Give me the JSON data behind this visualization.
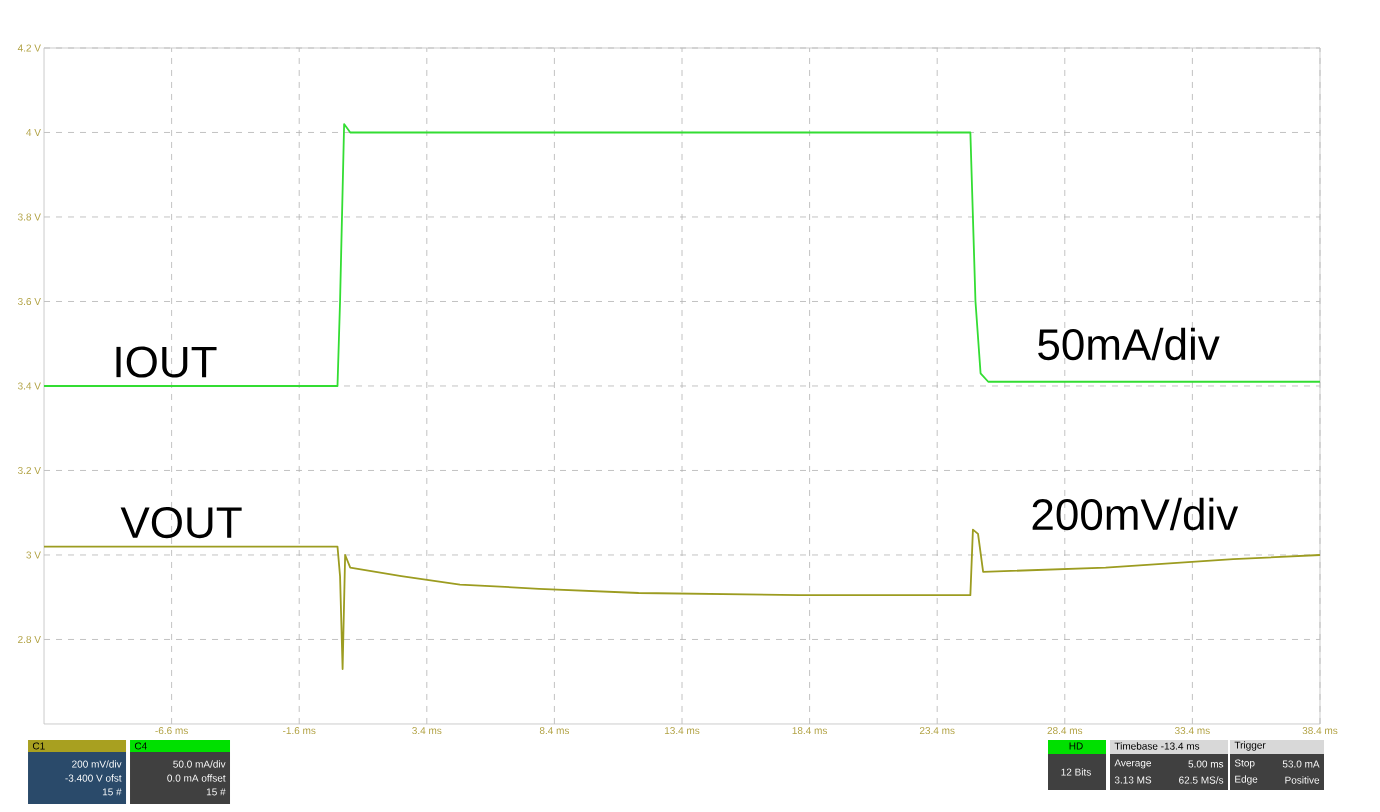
{
  "chart_data": {
    "type": "line",
    "xlim": [
      -11.6,
      38.4
    ],
    "ylim": [
      2.6,
      4.2
    ],
    "xticks": [
      {
        "value": -6.6,
        "label": "-6.6 ms"
      },
      {
        "value": -1.6,
        "label": "-1.6 ms"
      },
      {
        "value": 3.4,
        "label": "3.4 ms"
      },
      {
        "value": 8.4,
        "label": "8.4 ms"
      },
      {
        "value": 13.4,
        "label": "13.4 ms"
      },
      {
        "value": 18.4,
        "label": "18.4 ms"
      },
      {
        "value": 23.4,
        "label": "23.4 ms"
      },
      {
        "value": 28.4,
        "label": "28.4 ms"
      },
      {
        "value": 33.4,
        "label": "33.4 ms"
      },
      {
        "value": 38.4,
        "label": "38.4 ms"
      }
    ],
    "yticks": [
      {
        "value": 2.8,
        "label": "2.8 V"
      },
      {
        "value": 3.0,
        "label": "3 V"
      },
      {
        "value": 3.2,
        "label": "3.2 V"
      },
      {
        "value": 3.4,
        "label": "3.4 V"
      },
      {
        "value": 3.6,
        "label": "3.6 V"
      },
      {
        "value": 3.8,
        "label": "3.8 V"
      },
      {
        "value": 4.0,
        "label": "4 V"
      },
      {
        "value": 4.2,
        "label": "4.2 V"
      }
    ],
    "grid": true,
    "legend": false,
    "marker": "none",
    "line_style": "solid",
    "series": [
      {
        "name": "IOUT",
        "color": "#33dd33",
        "x": [
          -11.6,
          -0.1,
          0.0,
          0.16,
          0.4,
          24.7,
          24.9,
          25.1,
          25.4,
          38.4
        ],
        "values": [
          3.4,
          3.4,
          3.6,
          4.02,
          4.0,
          4.0,
          3.6,
          3.43,
          3.41,
          3.41
        ]
      },
      {
        "name": "VOUT",
        "color": "#9c9c20",
        "x": [
          -11.6,
          -0.1,
          0.0,
          0.1,
          0.2,
          0.4,
          2.4,
          4.7,
          7.8,
          11.7,
          18.0,
          24.7,
          24.8,
          25.0,
          25.2,
          30.0,
          35.0,
          38.4
        ],
        "values": [
          3.02,
          3.02,
          2.95,
          2.73,
          3.0,
          2.97,
          2.95,
          2.93,
          2.92,
          2.91,
          2.905,
          2.905,
          3.06,
          3.05,
          2.96,
          2.97,
          2.99,
          3.0
        ]
      }
    ],
    "annotations": [
      "50mA/div",
      "200mV/div",
      "C1",
      "200 mV/div",
      "-3.400 V ofst",
      "15 #",
      "C4",
      "50.0 mA/div",
      "0.0 mA offset",
      "15 #",
      "HD",
      "12 Bits",
      "Timebase -13.4 ms",
      "Average",
      "5.00 ms",
      "3.13 MS",
      "62.5 MS/s",
      "Trigger",
      "Stop",
      "53.0 mA",
      "Edge",
      "Positive"
    ]
  }
}
